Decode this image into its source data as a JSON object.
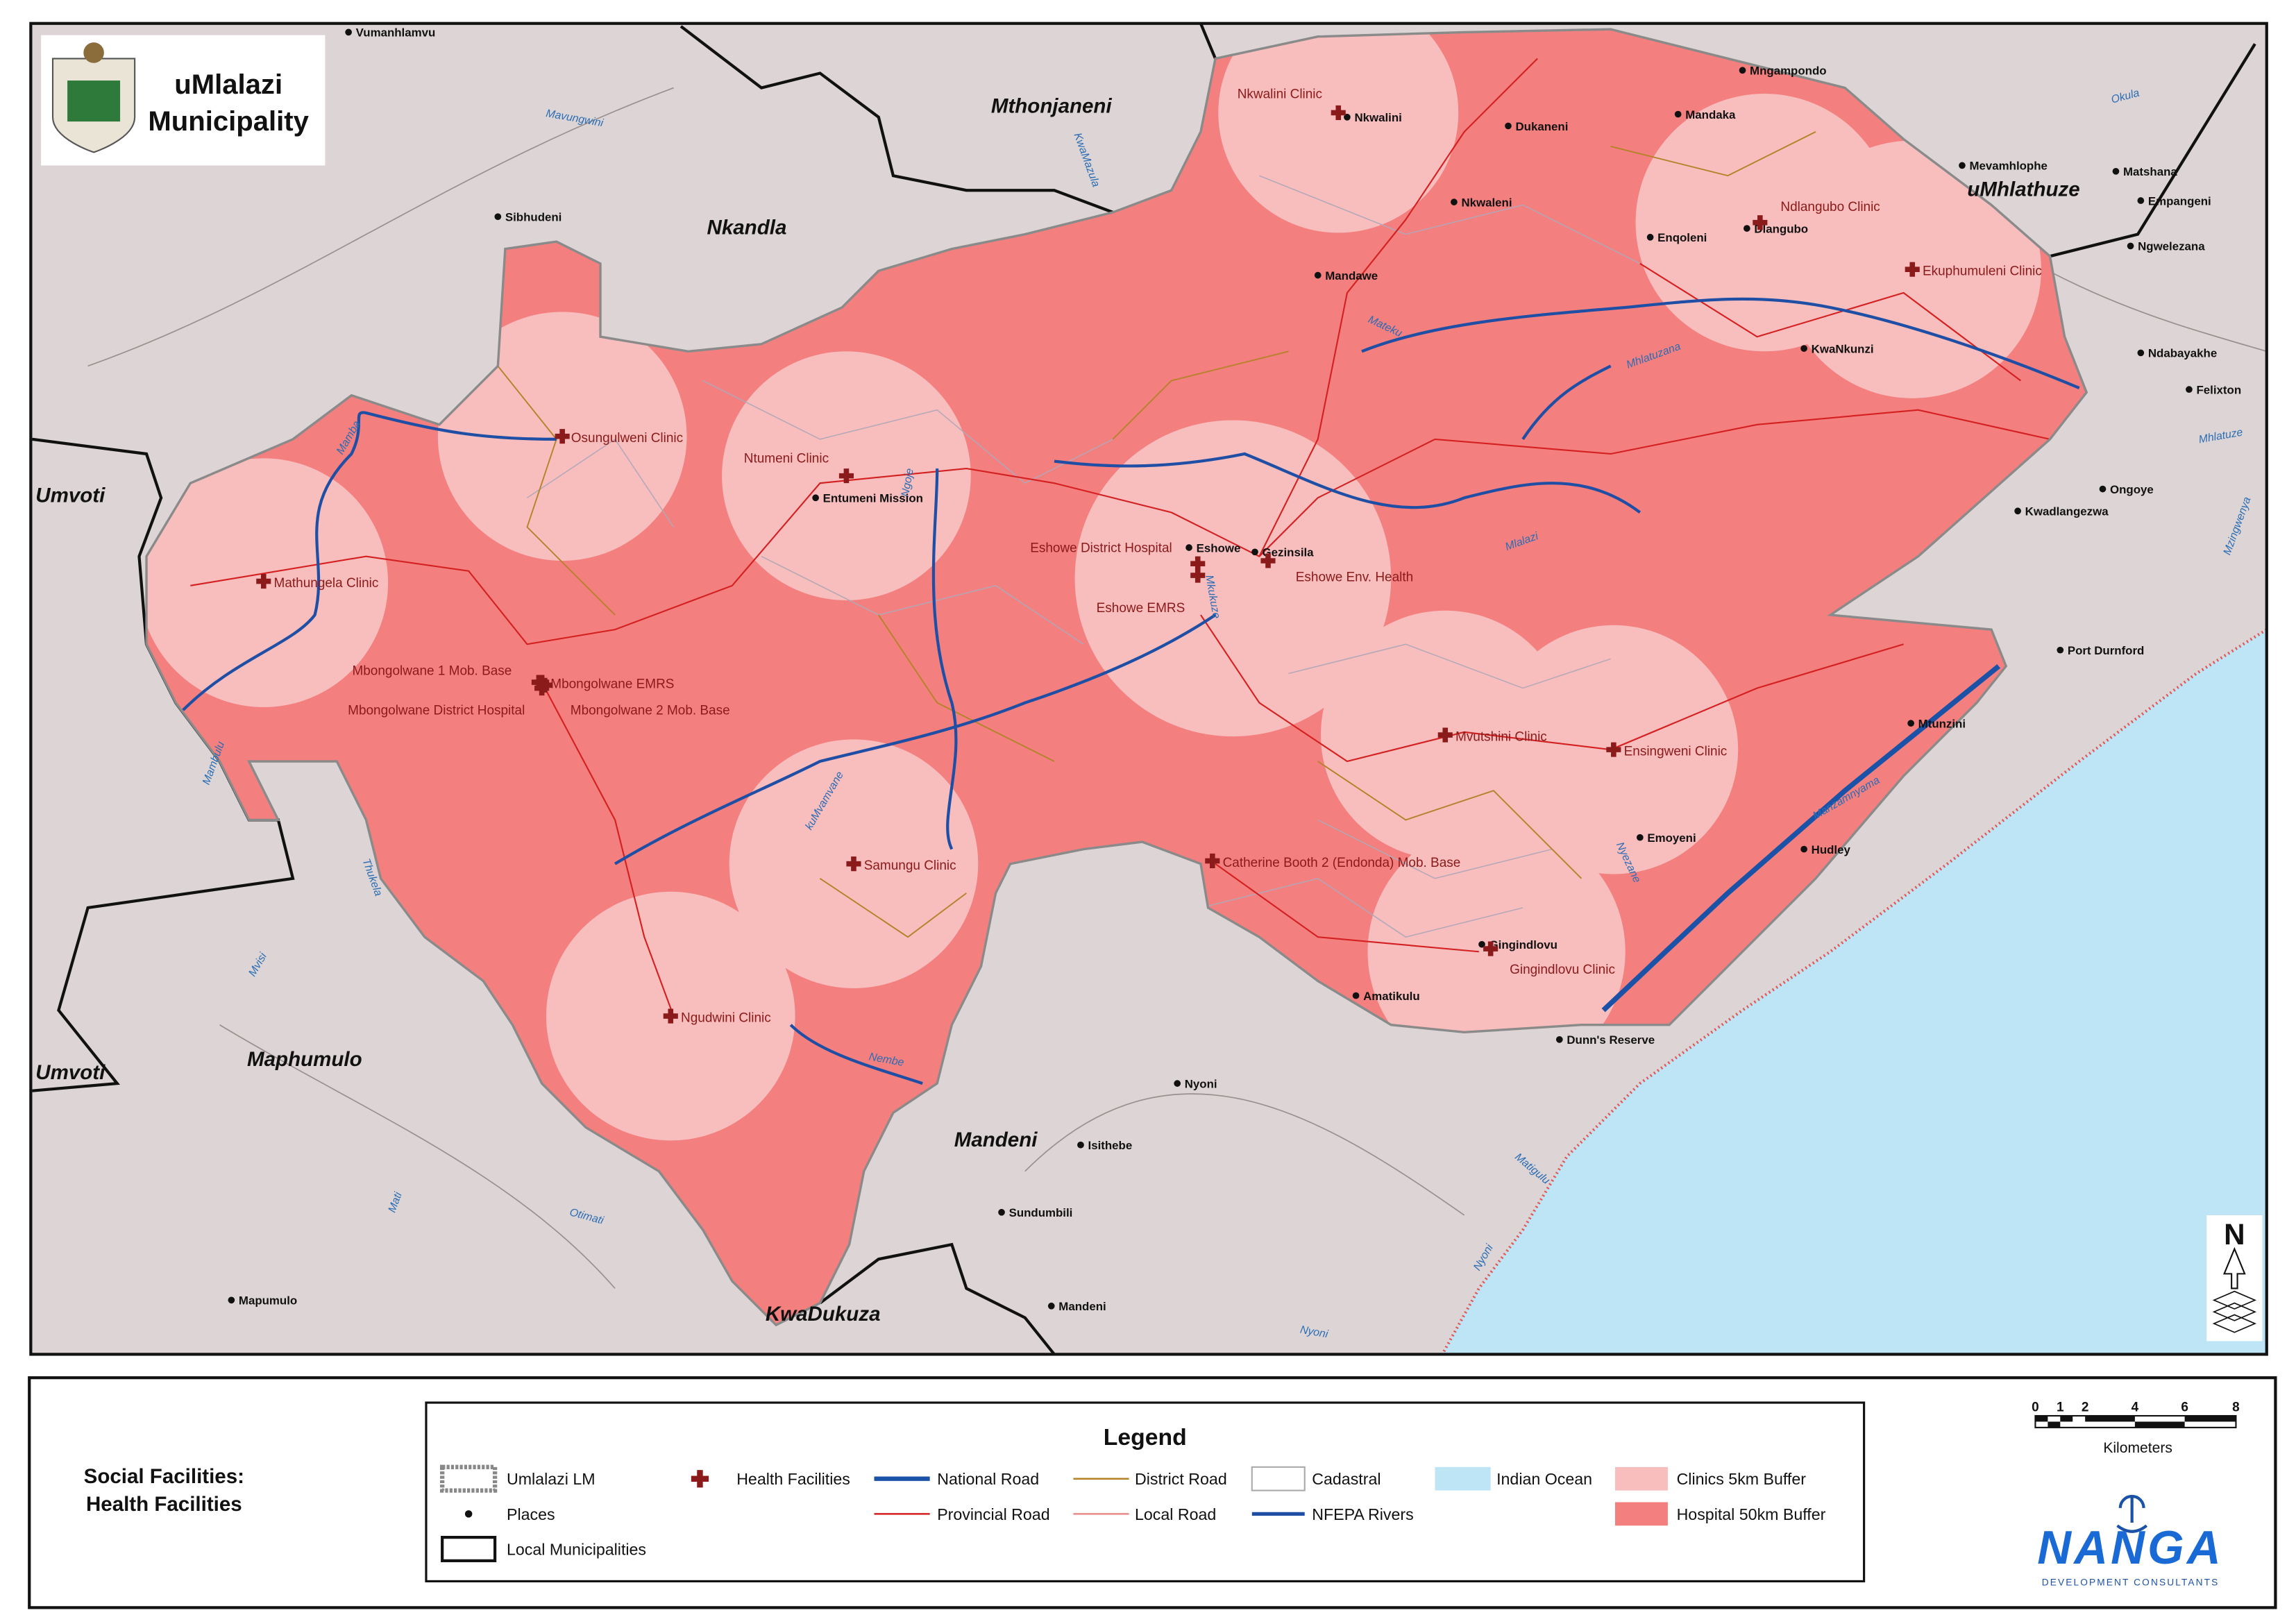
{
  "header": {
    "title_lines": [
      "uMlalazi",
      "Municipality"
    ]
  },
  "map": {
    "regions": [
      "Mthonjaneni",
      "Nkandla",
      "uMhlathuze",
      "Umvoti",
      "Umvoti",
      "Maphumulo",
      "Mandeni",
      "KwaDukuza"
    ],
    "places": [
      "Vumanhlamvu",
      "Sibhudeni",
      "Entumeni Mission",
      "Mngampondo",
      "Mandaka",
      "Nkwalini",
      "Dukaneni",
      "Nkwaleni",
      "Mevamhlophe",
      "Matshana",
      "Empangeni",
      "Ngwelezana",
      "Enqoleni",
      "Dlangubo",
      "Mandawe",
      "KwaNkunzi",
      "Ndabayakhe",
      "Felixton",
      "Ongoye",
      "Kwadlangezwa",
      "Eshowe",
      "Gezinsila",
      "Port Durnford",
      "Mtunzini",
      "Emoyeni",
      "Hudley",
      "Gingindlovu",
      "Amatikulu",
      "Dunn's Reserve",
      "Nyoni",
      "Isithebe",
      "Sundumbili",
      "Mandeni",
      "Mapumulo"
    ],
    "health_facilities": [
      "Nkwalini Clinic",
      "Ndlangubo Clinic",
      "Ekuphumuleni Clinic",
      "Osungulweni Clinic",
      "Ntumeni Clinic",
      "Mathungela Clinic",
      "Eshowe District Hospital",
      "Eshowe EMRS",
      "Eshowe Env. Health",
      "Mbongolwane 1 Mob. Base",
      "Mbongolwane EMRS",
      "Mbongolwane District Hospital",
      "Mbongolwane 2 Mob. Base",
      "Mvutshini Clinic",
      "Ensingweni Clinic",
      "Catherine Booth 2 (Endonda) Mob. Base",
      "Samungu Clinic",
      "Gingindlovu Clinic",
      "Ngudwini Clinic"
    ],
    "rivers": [
      "Mavungwini",
      "KwaMazula",
      "Okula",
      "Mateku",
      "Mhlatuzana",
      "Mhlatuze",
      "Mzingwenya",
      "Mlalazi",
      "Mamba",
      "Ngoje",
      "Mkukuze",
      "Mambulu",
      "Thukela",
      "kuMvamvane",
      "Manzamnyama",
      "Nyezane",
      "Nembe",
      "Mvisi",
      "Mati",
      "Otimati",
      "Matigulu",
      "Nyoni",
      "Nyoni"
    ],
    "north": "N"
  },
  "panel": {
    "title_lines": [
      "Social Facilities:",
      "Health Facilities"
    ]
  },
  "legend": {
    "title": "Legend",
    "items": [
      "Umlalazi LM",
      "Places",
      "Local Municipalities",
      "Health Facilities",
      "National Road",
      "Provincial Road",
      "District Road",
      "Local Road",
      "Cadastral",
      "NFEPA Rivers",
      "Indian Ocean",
      "Clinics 5km Buffer",
      "Hospital 50km Buffer"
    ]
  },
  "scale_bar": {
    "ticks": [
      "0",
      "1",
      "2",
      "4",
      "6",
      "8"
    ],
    "unit": "Kilometers"
  },
  "logo": {
    "name": "NANGA",
    "tagline": "DEVELOPMENT CONSULTANTS"
  }
}
